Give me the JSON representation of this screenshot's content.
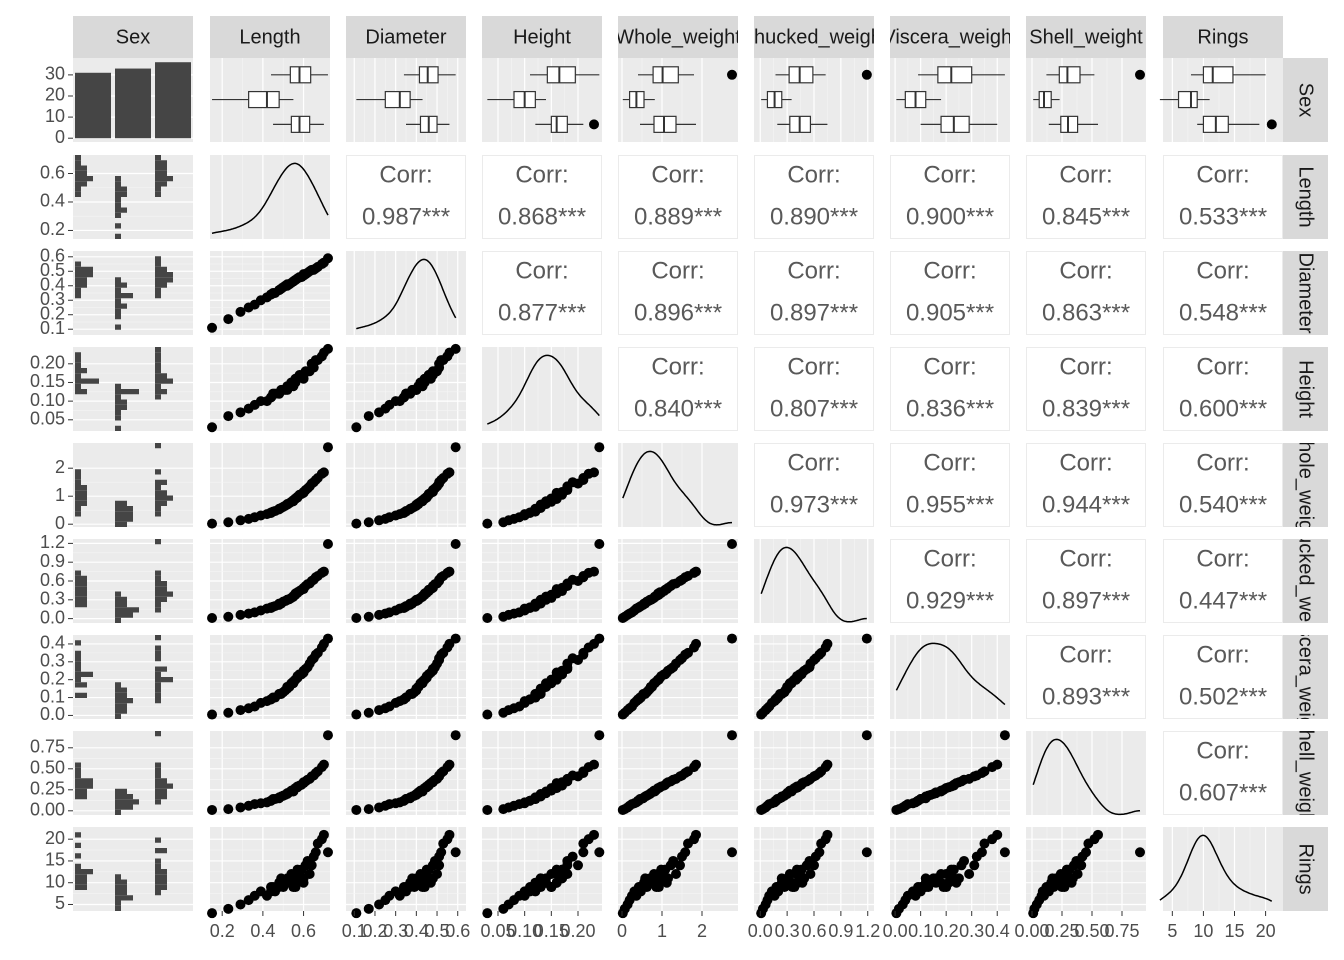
{
  "chart_data": {
    "type": "pairs",
    "variables": [
      "Sex",
      "Length",
      "Diameter",
      "Height",
      "Whole_weight",
      "Shucked_weight",
      "Viscera_weight",
      "Shell_weight",
      "Rings"
    ],
    "rows": [
      [
        1,
        0.15,
        0.11,
        0.03,
        0.02,
        0.01,
        0.005,
        0.01,
        3
      ],
      [
        1,
        0.23,
        0.17,
        0.06,
        0.07,
        0.03,
        0.015,
        0.02,
        4
      ],
      [
        1,
        0.29,
        0.22,
        0.07,
        0.14,
        0.06,
        0.03,
        0.04,
        5
      ],
      [
        1,
        0.33,
        0.25,
        0.08,
        0.19,
        0.08,
        0.04,
        0.06,
        6
      ],
      [
        1,
        0.36,
        0.27,
        0.09,
        0.25,
        0.1,
        0.05,
        0.08,
        7
      ],
      [
        1,
        0.39,
        0.3,
        0.1,
        0.31,
        0.13,
        0.07,
        0.09,
        8
      ],
      [
        1,
        0.42,
        0.32,
        0.1,
        0.36,
        0.16,
        0.08,
        0.1,
        7
      ],
      [
        1,
        0.44,
        0.34,
        0.11,
        0.42,
        0.18,
        0.09,
        0.12,
        9
      ],
      [
        1,
        0.46,
        0.35,
        0.12,
        0.47,
        0.2,
        0.1,
        0.14,
        8
      ],
      [
        1,
        0.48,
        0.37,
        0.12,
        0.55,
        0.24,
        0.12,
        0.16,
        10
      ],
      [
        1,
        0.5,
        0.39,
        0.13,
        0.62,
        0.27,
        0.13,
        0.18,
        9
      ],
      [
        1,
        0.52,
        0.4,
        0.13,
        0.7,
        0.3,
        0.15,
        0.2,
        11
      ],
      [
        1,
        0.55,
        0.43,
        0.14,
        0.82,
        0.35,
        0.18,
        0.23,
        10
      ],
      [
        0,
        0.45,
        0.35,
        0.12,
        0.45,
        0.19,
        0.1,
        0.14,
        9
      ],
      [
        0,
        0.49,
        0.38,
        0.13,
        0.58,
        0.24,
        0.12,
        0.17,
        11
      ],
      [
        0,
        0.52,
        0.41,
        0.14,
        0.72,
        0.3,
        0.16,
        0.21,
        10
      ],
      [
        0,
        0.54,
        0.42,
        0.15,
        0.8,
        0.33,
        0.18,
        0.24,
        12
      ],
      [
        0,
        0.56,
        0.44,
        0.15,
        0.92,
        0.38,
        0.2,
        0.27,
        9
      ],
      [
        0,
        0.57,
        0.45,
        0.16,
        0.98,
        0.41,
        0.22,
        0.29,
        13
      ],
      [
        0,
        0.58,
        0.46,
        0.17,
        1.05,
        0.44,
        0.23,
        0.3,
        11
      ],
      [
        0,
        0.6,
        0.47,
        0.16,
        1.12,
        0.47,
        0.24,
        0.33,
        10
      ],
      [
        0,
        0.61,
        0.48,
        0.18,
        1.22,
        0.52,
        0.26,
        0.35,
        14
      ],
      [
        0,
        0.63,
        0.5,
        0.18,
        1.35,
        0.56,
        0.29,
        0.38,
        12
      ],
      [
        0,
        0.65,
        0.51,
        0.19,
        1.5,
        0.62,
        0.32,
        0.42,
        16
      ],
      [
        0,
        0.67,
        0.53,
        0.21,
        1.65,
        0.68,
        0.35,
        0.47,
        19
      ],
      [
        0,
        0.7,
        0.56,
        0.23,
        1.85,
        0.75,
        0.4,
        0.55,
        21
      ],
      [
        2,
        0.44,
        0.34,
        0.11,
        0.4,
        0.17,
        0.09,
        0.12,
        8
      ],
      [
        2,
        0.48,
        0.37,
        0.12,
        0.53,
        0.22,
        0.12,
        0.15,
        9
      ],
      [
        2,
        0.51,
        0.4,
        0.13,
        0.66,
        0.28,
        0.14,
        0.19,
        10
      ],
      [
        2,
        0.53,
        0.41,
        0.14,
        0.75,
        0.31,
        0.16,
        0.22,
        11
      ],
      [
        2,
        0.55,
        0.43,
        0.15,
        0.86,
        0.36,
        0.19,
        0.25,
        9
      ],
      [
        2,
        0.56,
        0.44,
        0.16,
        0.9,
        0.4,
        0.2,
        0.27,
        12
      ],
      [
        2,
        0.57,
        0.45,
        0.16,
        0.95,
        0.42,
        0.21,
        0.28,
        10
      ],
      [
        2,
        0.59,
        0.46,
        0.17,
        1.08,
        0.46,
        0.23,
        0.31,
        13
      ],
      [
        2,
        0.6,
        0.48,
        0.17,
        1.15,
        0.49,
        0.25,
        0.34,
        11
      ],
      [
        2,
        0.62,
        0.49,
        0.18,
        1.28,
        0.55,
        0.27,
        0.37,
        15
      ],
      [
        2,
        0.64,
        0.51,
        0.2,
        1.45,
        0.6,
        0.31,
        0.41,
        14
      ],
      [
        2,
        0.66,
        0.52,
        0.21,
        1.58,
        0.66,
        0.34,
        0.45,
        17
      ],
      [
        2,
        0.69,
        0.55,
        0.22,
        1.8,
        0.73,
        0.38,
        0.52,
        20
      ],
      [
        2,
        0.72,
        0.59,
        0.24,
        2.75,
        1.19,
        0.43,
        0.9,
        17
      ]
    ],
    "sex_counts": [
      31,
      33,
      36
    ],
    "count_ylim": [
      -1.8,
      38
    ],
    "count_yticks": [
      0,
      10,
      20,
      30
    ],
    "hist_count_lim": [
      0,
      6
    ],
    "corr_label": "Corr:",
    "correlations": [
      [
        {
          "value": 0.987,
          "label": "0.987***"
        },
        {
          "value": 0.868,
          "label": "0.868***"
        },
        {
          "value": 0.889,
          "label": "0.889***"
        },
        {
          "value": 0.89,
          "label": "0.890***"
        },
        {
          "value": 0.9,
          "label": "0.900***"
        },
        {
          "value": 0.845,
          "label": "0.845***"
        },
        {
          "value": 0.533,
          "label": "0.533***"
        }
      ],
      [
        {
          "value": 0.877,
          "label": "0.877***"
        },
        {
          "value": 0.896,
          "label": "0.896***"
        },
        {
          "value": 0.897,
          "label": "0.897***"
        },
        {
          "value": 0.905,
          "label": "0.905***"
        },
        {
          "value": 0.863,
          "label": "0.863***"
        },
        {
          "value": 0.548,
          "label": "0.548***"
        }
      ],
      [
        {
          "value": 0.84,
          "label": "0.840***"
        },
        {
          "value": 0.807,
          "label": "0.807***"
        },
        {
          "value": 0.836,
          "label": "0.836***"
        },
        {
          "value": 0.839,
          "label": "0.839***"
        },
        {
          "value": 0.6,
          "label": "0.600***"
        }
      ],
      [
        {
          "value": 0.973,
          "label": "0.973***"
        },
        {
          "value": 0.955,
          "label": "0.955***"
        },
        {
          "value": 0.944,
          "label": "0.944***"
        },
        {
          "value": 0.54,
          "label": "0.540***"
        }
      ],
      [
        {
          "value": 0.929,
          "label": "0.929***"
        },
        {
          "value": 0.897,
          "label": "0.897***"
        },
        {
          "value": 0.447,
          "label": "0.447***"
        }
      ],
      [
        {
          "value": 0.893,
          "label": "0.893***"
        },
        {
          "value": 0.502,
          "label": "0.502***"
        }
      ],
      [
        {
          "value": 0.607,
          "label": "0.607***"
        }
      ]
    ],
    "axes": [
      {
        "lim": [
          0.14,
          0.73
        ],
        "ticks": [
          0.2,
          0.4,
          0.6
        ]
      },
      {
        "lim": [
          0.06,
          0.64
        ],
        "ticks": [
          0.1,
          0.2,
          0.3,
          0.4,
          0.5,
          0.6
        ]
      },
      {
        "lim": [
          0.02,
          0.245
        ],
        "ticks": [
          0.05,
          {
            "value": 0.1,
            "label": "0.10"
          },
          0.15,
          {
            "value": 0.2,
            "label": "0.20"
          }
        ]
      },
      {
        "lim": [
          -0.1,
          2.9
        ],
        "ticks": [
          0,
          1,
          2
        ]
      },
      {
        "lim": [
          -0.07,
          1.27
        ],
        "ticks": [
          {
            "value": 0,
            "label": "0.0"
          },
          0.3,
          0.6,
          0.9,
          {
            "value": 1.2,
            "label": "1.2"
          }
        ]
      },
      {
        "lim": [
          -0.02,
          0.45
        ],
        "ticks": [
          {
            "value": 0,
            "label": "0.0"
          },
          0.1,
          0.2,
          0.3,
          0.4
        ]
      },
      {
        "lim": [
          -0.05,
          0.95
        ],
        "ticks": [
          {
            "value": 0,
            "label": "0.00"
          },
          0.25,
          {
            "value": 0.5,
            "label": "0.50"
          },
          0.75
        ]
      },
      {
        "lim": [
          3.5,
          22.8
        ],
        "ticks": [
          5,
          10,
          15,
          20
        ]
      }
    ],
    "bar_color": "#454545",
    "point_color": "#000000",
    "panel_bg": "#ebebeb",
    "strip_bg": "#d9d9d9"
  }
}
